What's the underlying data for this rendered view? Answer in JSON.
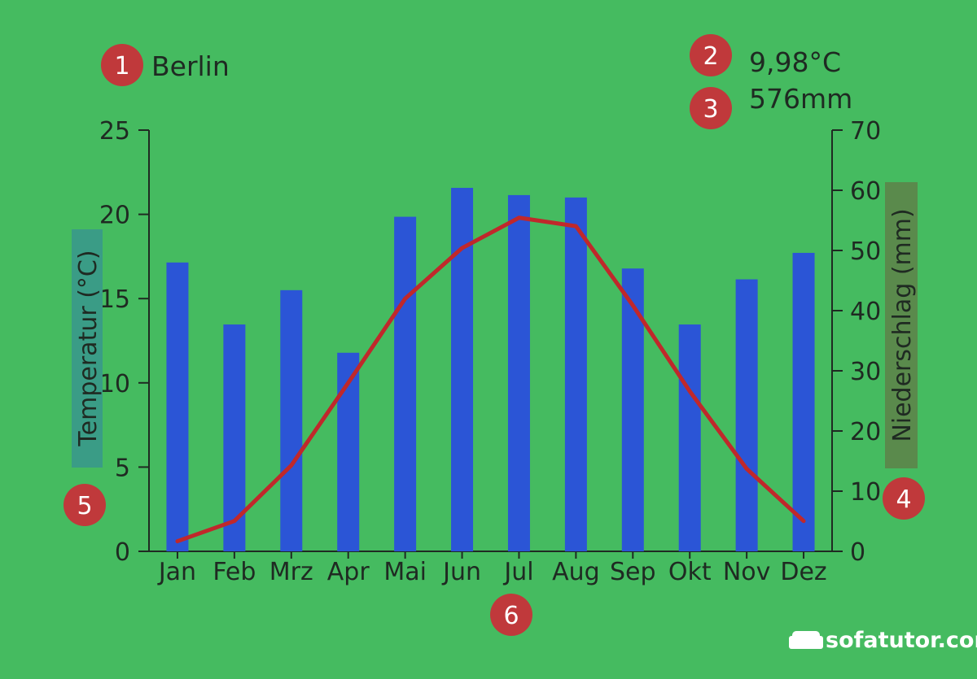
{
  "chart_data": {
    "type": "bar+line",
    "title": "Berlin",
    "annual_temperature": "9,98°C",
    "annual_precipitation": "576mm",
    "categories": [
      "Jan",
      "Feb",
      "Mrz",
      "Apr",
      "Mai",
      "Jun",
      "Jul",
      "Aug",
      "Sep",
      "Okt",
      "Nov",
      "Dez"
    ],
    "series": [
      {
        "axis": "right",
        "type": "bar",
        "color": "#2b55d6",
        "values": [
          48,
          37.7,
          43.4,
          33,
          55.6,
          60.4,
          59.2,
          58.8,
          47,
          37.7,
          45.2,
          49.6
        ]
      },
      {
        "axis": "left",
        "type": "line",
        "color": "#c0282b",
        "values": [
          0.6,
          1.8,
          5.1,
          10,
          15,
          18,
          19.8,
          19.3,
          14.6,
          9.5,
          4.9,
          1.8
        ]
      }
    ],
    "left_axis": {
      "label": "Temperatur  (°C)",
      "ylim": [
        0,
        25
      ],
      "ticks": [
        "0",
        "5",
        "10",
        "15",
        "20",
        "25"
      ]
    },
    "right_axis": {
      "label": "Niederschlag  (mm)",
      "ylim": [
        0,
        70
      ],
      "ticks": [
        "0",
        "10",
        "20",
        "30",
        "40",
        "50",
        "60",
        "70"
      ]
    },
    "grid": false
  },
  "badges": [
    "1",
    "2",
    "3",
    "4",
    "5",
    "6"
  ],
  "colors": {
    "background": "#45bb60",
    "bar": "#2b55d6",
    "line": "#c0282b",
    "badge": "#c0393b",
    "left_label_bg": "#3a9c86",
    "right_label_bg": "#5a8a4c"
  },
  "logo": {
    "text": "sofatutor.com",
    "icon": "sofa-icon"
  }
}
